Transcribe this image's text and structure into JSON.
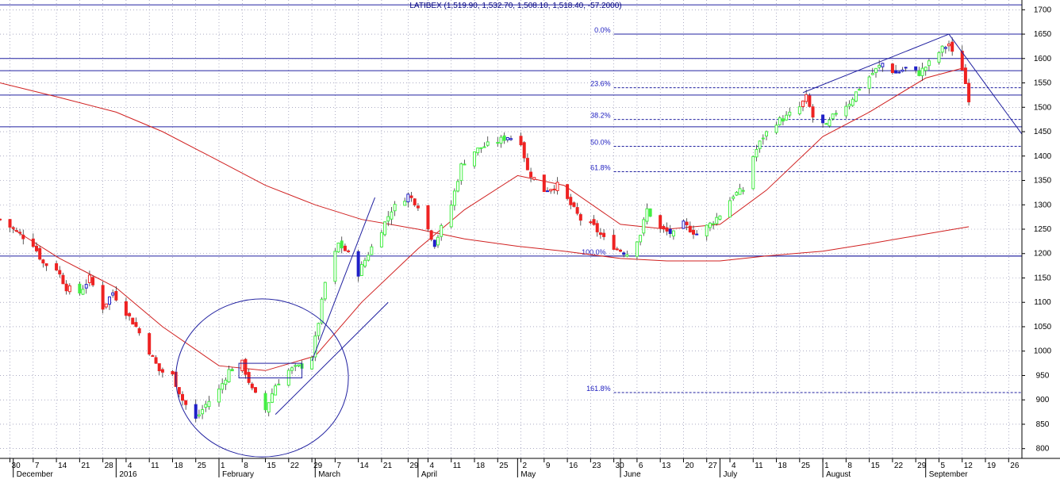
{
  "chart_data": {
    "type": "candlestick",
    "title": "LATIBEX (1,519.90, 1,532.70, 1,508.10, 1,518.40, -57.2000)",
    "ylim": [
      780,
      1720
    ],
    "y_ticks": [
      800,
      850,
      900,
      950,
      1000,
      1050,
      1100,
      1150,
      1200,
      1250,
      1300,
      1350,
      1400,
      1450,
      1500,
      1550,
      1600,
      1650,
      1700
    ],
    "x_start": "2015-11-27",
    "x_end": "2016-09-30",
    "x_ticks": [
      {
        "label": "30",
        "date": "2015-11-30"
      },
      {
        "label": "7",
        "date": "2015-12-07"
      },
      {
        "label": "14",
        "date": "2015-12-14"
      },
      {
        "label": "21",
        "date": "2015-12-21"
      },
      {
        "label": "28",
        "date": "2015-12-28"
      },
      {
        "label": "4",
        "date": "2016-01-04"
      },
      {
        "label": "11",
        "date": "2016-01-11"
      },
      {
        "label": "18",
        "date": "2016-01-18"
      },
      {
        "label": "25",
        "date": "2016-01-25"
      },
      {
        "label": "1",
        "date": "2016-02-01"
      },
      {
        "label": "8",
        "date": "2016-02-08"
      },
      {
        "label": "15",
        "date": "2016-02-15"
      },
      {
        "label": "22",
        "date": "2016-02-22"
      },
      {
        "label": "29",
        "date": "2016-02-29"
      },
      {
        "label": "7",
        "date": "2016-03-07"
      },
      {
        "label": "14",
        "date": "2016-03-14"
      },
      {
        "label": "21",
        "date": "2016-03-21"
      },
      {
        "label": "29",
        "date": "2016-03-29"
      },
      {
        "label": "4",
        "date": "2016-04-04"
      },
      {
        "label": "11",
        "date": "2016-04-11"
      },
      {
        "label": "18",
        "date": "2016-04-18"
      },
      {
        "label": "25",
        "date": "2016-04-25"
      },
      {
        "label": "2",
        "date": "2016-05-02"
      },
      {
        "label": "9",
        "date": "2016-05-09"
      },
      {
        "label": "16",
        "date": "2016-05-16"
      },
      {
        "label": "23",
        "date": "2016-05-23"
      },
      {
        "label": "30",
        "date": "2016-05-30"
      },
      {
        "label": "6",
        "date": "2016-06-06"
      },
      {
        "label": "13",
        "date": "2016-06-13"
      },
      {
        "label": "20",
        "date": "2016-06-20"
      },
      {
        "label": "27",
        "date": "2016-06-27"
      },
      {
        "label": "4",
        "date": "2016-07-04"
      },
      {
        "label": "11",
        "date": "2016-07-11"
      },
      {
        "label": "18",
        "date": "2016-07-18"
      },
      {
        "label": "25",
        "date": "2016-07-25"
      },
      {
        "label": "1",
        "date": "2016-08-01"
      },
      {
        "label": "8",
        "date": "2016-08-08"
      },
      {
        "label": "15",
        "date": "2016-08-15"
      },
      {
        "label": "22",
        "date": "2016-08-22"
      },
      {
        "label": "29",
        "date": "2016-08-29"
      },
      {
        "label": "5",
        "date": "2016-09-05"
      },
      {
        "label": "12",
        "date": "2016-09-12"
      },
      {
        "label": "19",
        "date": "2016-09-19"
      },
      {
        "label": "26",
        "date": "2016-09-26"
      }
    ],
    "month_labels": [
      {
        "label": "December",
        "date": "2015-12-01"
      },
      {
        "label": "2016",
        "date": "2016-01-01"
      },
      {
        "label": "February",
        "date": "2016-02-01"
      },
      {
        "label": "March",
        "date": "2016-03-01"
      },
      {
        "label": "April",
        "date": "2016-04-01"
      },
      {
        "label": "May",
        "date": "2016-05-01"
      },
      {
        "label": "June",
        "date": "2016-06-01"
      },
      {
        "label": "July",
        "date": "2016-07-01"
      },
      {
        "label": "August",
        "date": "2016-08-01"
      },
      {
        "label": "September",
        "date": "2016-09-01"
      }
    ],
    "price_path": [
      {
        "date": "2015-11-27",
        "value": 1270
      },
      {
        "date": "2015-12-01",
        "value": 1250
      },
      {
        "date": "2015-12-07",
        "value": 1220
      },
      {
        "date": "2015-12-10",
        "value": 1180
      },
      {
        "date": "2015-12-14",
        "value": 1170
      },
      {
        "date": "2015-12-17",
        "value": 1130
      },
      {
        "date": "2015-12-21",
        "value": 1120
      },
      {
        "date": "2015-12-24",
        "value": 1150
      },
      {
        "date": "2015-12-28",
        "value": 1090
      },
      {
        "date": "2015-12-31",
        "value": 1120
      },
      {
        "date": "2016-01-04",
        "value": 1080
      },
      {
        "date": "2016-01-07",
        "value": 1050
      },
      {
        "date": "2016-01-11",
        "value": 1000
      },
      {
        "date": "2016-01-14",
        "value": 960
      },
      {
        "date": "2016-01-18",
        "value": 950
      },
      {
        "date": "2016-01-21",
        "value": 900
      },
      {
        "date": "2016-01-25",
        "value": 860
      },
      {
        "date": "2016-01-28",
        "value": 890
      },
      {
        "date": "2016-02-01",
        "value": 920
      },
      {
        "date": "2016-02-04",
        "value": 960
      },
      {
        "date": "2016-02-08",
        "value": 975
      },
      {
        "date": "2016-02-11",
        "value": 920
      },
      {
        "date": "2016-02-15",
        "value": 880
      },
      {
        "date": "2016-02-18",
        "value": 930
      },
      {
        "date": "2016-02-22",
        "value": 960
      },
      {
        "date": "2016-02-26",
        "value": 970
      },
      {
        "date": "2016-02-29",
        "value": 990
      },
      {
        "date": "2016-03-02",
        "value": 1060
      },
      {
        "date": "2016-03-04",
        "value": 1140
      },
      {
        "date": "2016-03-08",
        "value": 1220
      },
      {
        "date": "2016-03-11",
        "value": 1200
      },
      {
        "date": "2016-03-14",
        "value": 1160
      },
      {
        "date": "2016-03-17",
        "value": 1200
      },
      {
        "date": "2016-03-21",
        "value": 1250
      },
      {
        "date": "2016-03-24",
        "value": 1290
      },
      {
        "date": "2016-03-29",
        "value": 1320
      },
      {
        "date": "2016-04-01",
        "value": 1300
      },
      {
        "date": "2016-04-04",
        "value": 1250
      },
      {
        "date": "2016-04-06",
        "value": 1220
      },
      {
        "date": "2016-04-11",
        "value": 1300
      },
      {
        "date": "2016-04-14",
        "value": 1380
      },
      {
        "date": "2016-04-18",
        "value": 1410
      },
      {
        "date": "2016-04-21",
        "value": 1420
      },
      {
        "date": "2016-04-25",
        "value": 1430
      },
      {
        "date": "2016-04-28",
        "value": 1440
      },
      {
        "date": "2016-05-02",
        "value": 1430
      },
      {
        "date": "2016-05-04",
        "value": 1370
      },
      {
        "date": "2016-05-09",
        "value": 1330
      },
      {
        "date": "2016-05-13",
        "value": 1340
      },
      {
        "date": "2016-05-16",
        "value": 1310
      },
      {
        "date": "2016-05-20",
        "value": 1270
      },
      {
        "date": "2016-05-24",
        "value": 1255
      },
      {
        "date": "2016-05-27",
        "value": 1230
      },
      {
        "date": "2016-05-31",
        "value": 1210
      },
      {
        "date": "2016-06-03",
        "value": 1200
      },
      {
        "date": "2016-06-07",
        "value": 1240
      },
      {
        "date": "2016-06-09",
        "value": 1290
      },
      {
        "date": "2016-06-13",
        "value": 1250
      },
      {
        "date": "2016-06-17",
        "value": 1240
      },
      {
        "date": "2016-06-20",
        "value": 1260
      },
      {
        "date": "2016-06-24",
        "value": 1240
      },
      {
        "date": "2016-06-28",
        "value": 1260
      },
      {
        "date": "2016-07-01",
        "value": 1280
      },
      {
        "date": "2016-07-05",
        "value": 1320
      },
      {
        "date": "2016-07-08",
        "value": 1330
      },
      {
        "date": "2016-07-11",
        "value": 1400
      },
      {
        "date": "2016-07-14",
        "value": 1440
      },
      {
        "date": "2016-07-18",
        "value": 1470
      },
      {
        "date": "2016-07-21",
        "value": 1480
      },
      {
        "date": "2016-07-25",
        "value": 1500
      },
      {
        "date": "2016-07-27",
        "value": 1520
      },
      {
        "date": "2016-07-29",
        "value": 1480
      },
      {
        "date": "2016-08-02",
        "value": 1460
      },
      {
        "date": "2016-08-05",
        "value": 1490
      },
      {
        "date": "2016-08-09",
        "value": 1510
      },
      {
        "date": "2016-08-12",
        "value": 1540
      },
      {
        "date": "2016-08-16",
        "value": 1570
      },
      {
        "date": "2016-08-19",
        "value": 1590
      },
      {
        "date": "2016-08-23",
        "value": 1570
      },
      {
        "date": "2016-08-26",
        "value": 1580
      },
      {
        "date": "2016-08-30",
        "value": 1570
      },
      {
        "date": "2016-09-02",
        "value": 1590
      },
      {
        "date": "2016-09-06",
        "value": 1620
      },
      {
        "date": "2016-09-08",
        "value": 1630
      },
      {
        "date": "2016-09-09",
        "value": 1610
      },
      {
        "date": "2016-09-12",
        "value": 1580
      },
      {
        "date": "2016-09-14",
        "value": 1518
      }
    ],
    "moving_average_short": [
      {
        "date": "2015-12-01",
        "value": 1250
      },
      {
        "date": "2015-12-15",
        "value": 1190
      },
      {
        "date": "2016-01-01",
        "value": 1130
      },
      {
        "date": "2016-01-15",
        "value": 1050
      },
      {
        "date": "2016-02-01",
        "value": 970
      },
      {
        "date": "2016-02-15",
        "value": 960
      },
      {
        "date": "2016-03-01",
        "value": 990
      },
      {
        "date": "2016-03-15",
        "value": 1100
      },
      {
        "date": "2016-04-01",
        "value": 1210
      },
      {
        "date": "2016-04-15",
        "value": 1290
      },
      {
        "date": "2016-05-01",
        "value": 1360
      },
      {
        "date": "2016-05-15",
        "value": 1340
      },
      {
        "date": "2016-06-01",
        "value": 1260
      },
      {
        "date": "2016-06-15",
        "value": 1250
      },
      {
        "date": "2016-07-01",
        "value": 1260
      },
      {
        "date": "2016-07-15",
        "value": 1330
      },
      {
        "date": "2016-08-01",
        "value": 1440
      },
      {
        "date": "2016-08-15",
        "value": 1490
      },
      {
        "date": "2016-09-01",
        "value": 1560
      },
      {
        "date": "2016-09-12",
        "value": 1580
      }
    ],
    "moving_average_long": [
      {
        "date": "2015-11-27",
        "value": 1550
      },
      {
        "date": "2015-12-15",
        "value": 1520
      },
      {
        "date": "2016-01-01",
        "value": 1490
      },
      {
        "date": "2016-01-15",
        "value": 1450
      },
      {
        "date": "2016-02-01",
        "value": 1390
      },
      {
        "date": "2016-02-15",
        "value": 1340
      },
      {
        "date": "2016-03-01",
        "value": 1300
      },
      {
        "date": "2016-03-15",
        "value": 1270
      },
      {
        "date": "2016-04-01",
        "value": 1250
      },
      {
        "date": "2016-04-15",
        "value": 1230
      },
      {
        "date": "2016-05-01",
        "value": 1215
      },
      {
        "date": "2016-05-15",
        "value": 1205
      },
      {
        "date": "2016-06-01",
        "value": 1190
      },
      {
        "date": "2016-06-15",
        "value": 1185
      },
      {
        "date": "2016-07-01",
        "value": 1185
      },
      {
        "date": "2016-07-15",
        "value": 1195
      },
      {
        "date": "2016-08-01",
        "value": 1205
      },
      {
        "date": "2016-08-15",
        "value": 1220
      },
      {
        "date": "2016-09-01",
        "value": 1240
      },
      {
        "date": "2016-09-14",
        "value": 1255
      }
    ],
    "fibonacci_levels": [
      {
        "label": "0.0%",
        "value": 1650
      },
      {
        "label": "23.6%",
        "value": 1540
      },
      {
        "label": "38.2%",
        "value": 1475
      },
      {
        "label": "50.0%",
        "value": 1420
      },
      {
        "label": "61.8%",
        "value": 1368
      },
      {
        "label": "100.0%",
        "value": 1195
      },
      {
        "label": "161.8%",
        "value": 915
      }
    ],
    "horizontal_lines": [
      1710,
      1600,
      1575,
      1525,
      1460,
      1195
    ],
    "annotations": [
      {
        "kind": "ellipse",
        "center": {
          "date": "2016-02-14",
          "value": 945
        },
        "half_width_days": 26,
        "half_height": 162
      },
      {
        "kind": "box",
        "from": {
          "date": "2016-02-07",
          "value": 945
        },
        "to": {
          "date": "2016-02-26",
          "value": 975
        }
      },
      {
        "kind": "trendline",
        "from": {
          "date": "2016-02-18",
          "value": 870
        },
        "to": {
          "date": "2016-03-23",
          "value": 1100
        }
      },
      {
        "kind": "trendline",
        "from": {
          "date": "2016-02-29",
          "value": 980
        },
        "to": {
          "date": "2016-03-19",
          "value": 1315
        }
      },
      {
        "kind": "trendline",
        "from": {
          "date": "2016-07-26",
          "value": 1530
        },
        "to": {
          "date": "2016-09-08",
          "value": 1650
        }
      },
      {
        "kind": "trendline",
        "from": {
          "date": "2016-09-08",
          "value": 1650
        },
        "to": {
          "date": "2016-09-30",
          "value": 1445
        }
      }
    ],
    "colors": {
      "up": "#44ee44",
      "down": "#ee2222",
      "neutral": "#2020c8",
      "ma": "#d02020",
      "lines": "#2020a0"
    }
  }
}
